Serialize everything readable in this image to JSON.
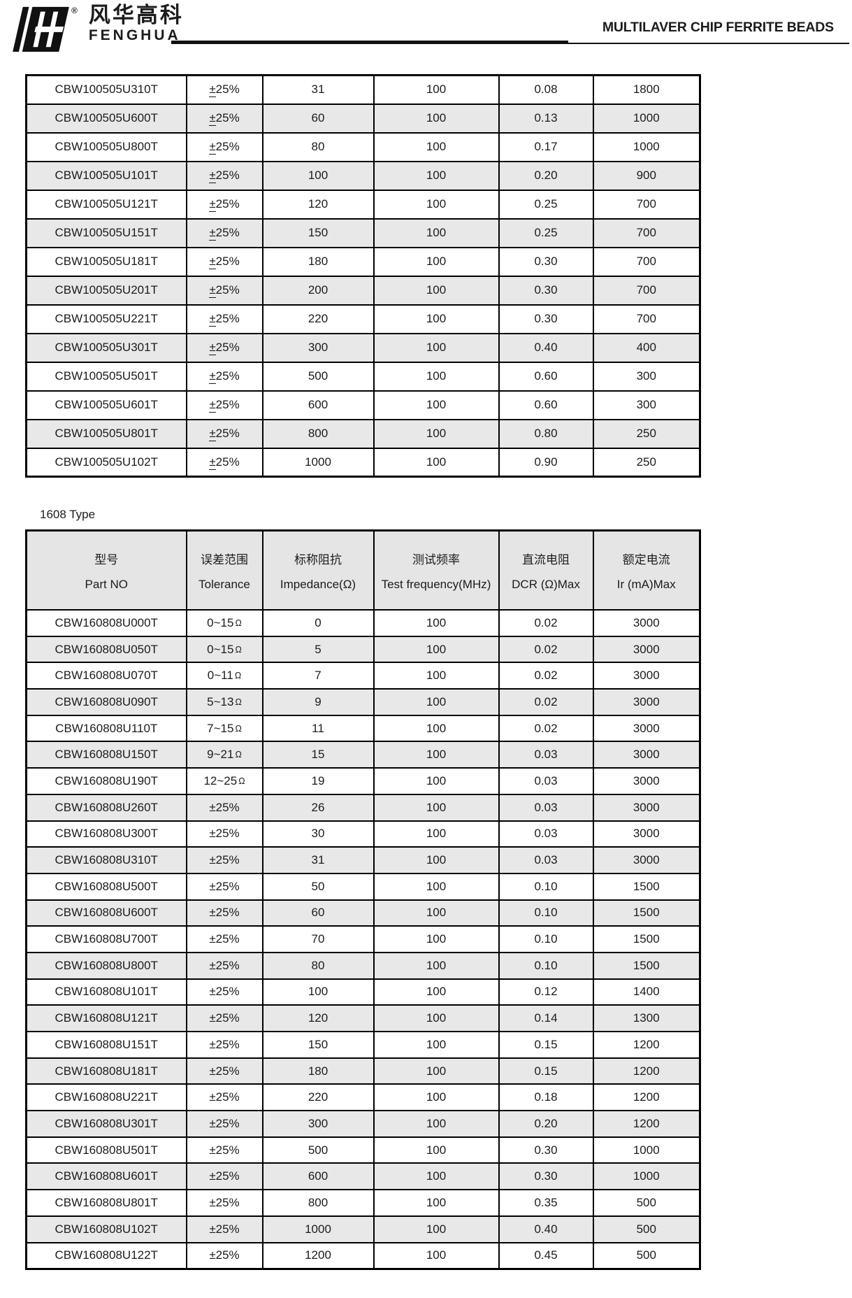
{
  "header": {
    "brand_cn": "风华高科",
    "brand_en": "FENGHUA",
    "registered_mark": "®",
    "doc_title": "MULTILAVER CHIP FERRITE BEADS"
  },
  "section_label": "1608 Type",
  "columns": [
    {
      "key": "part_no",
      "cn": "型号",
      "en": "Part NO"
    },
    {
      "key": "tolerance",
      "cn": "误差范围",
      "en": "Tolerance"
    },
    {
      "key": "impedance",
      "cn": "标称阻抗",
      "en": "Impedance(Ω)"
    },
    {
      "key": "test_frequency",
      "cn": "测试频率",
      "en": "Test frequency(MHz)"
    },
    {
      "key": "dcr",
      "cn": "直流电阻",
      "en": "DCR (Ω)Max"
    },
    {
      "key": "ir",
      "cn": "额定电流",
      "en": "Ir (mA)Max"
    }
  ],
  "table_100505": {
    "rows": [
      {
        "part_no": "CBW100505U310T",
        "tolerance": "±25%",
        "impedance": "31",
        "test_frequency": "100",
        "dcr": "0.08",
        "ir": "1800",
        "shaded": false
      },
      {
        "part_no": "CBW100505U600T",
        "tolerance": "±25%",
        "impedance": "60",
        "test_frequency": "100",
        "dcr": "0.13",
        "ir": "1000",
        "shaded": true
      },
      {
        "part_no": "CBW100505U800T",
        "tolerance": "±25%",
        "impedance": "80",
        "test_frequency": "100",
        "dcr": "0.17",
        "ir": "1000",
        "shaded": false
      },
      {
        "part_no": "CBW100505U101T",
        "tolerance": "±25%",
        "impedance": "100",
        "test_frequency": "100",
        "dcr": "0.20",
        "ir": "900",
        "shaded": true
      },
      {
        "part_no": "CBW100505U121T",
        "tolerance": "±25%",
        "impedance": "120",
        "test_frequency": "100",
        "dcr": "0.25",
        "ir": "700",
        "shaded": false
      },
      {
        "part_no": "CBW100505U151T",
        "tolerance": "±25%",
        "impedance": "150",
        "test_frequency": "100",
        "dcr": "0.25",
        "ir": "700",
        "shaded": true
      },
      {
        "part_no": "CBW100505U181T",
        "tolerance": "±25%",
        "impedance": "180",
        "test_frequency": "100",
        "dcr": "0.30",
        "ir": "700",
        "shaded": false
      },
      {
        "part_no": "CBW100505U201T",
        "tolerance": "±25%",
        "impedance": "200",
        "test_frequency": "100",
        "dcr": "0.30",
        "ir": "700",
        "shaded": true
      },
      {
        "part_no": "CBW100505U221T",
        "tolerance": "±25%",
        "impedance": "220",
        "test_frequency": "100",
        "dcr": "0.30",
        "ir": "700",
        "shaded": false
      },
      {
        "part_no": "CBW100505U301T",
        "tolerance": "±25%",
        "impedance": "300",
        "test_frequency": "100",
        "dcr": "0.40",
        "ir": "400",
        "shaded": true
      },
      {
        "part_no": "CBW100505U501T",
        "tolerance": "±25%",
        "impedance": "500",
        "test_frequency": "100",
        "dcr": "0.60",
        "ir": "300",
        "shaded": false
      },
      {
        "part_no": "CBW100505U601T",
        "tolerance": "±25%",
        "impedance": "600",
        "test_frequency": "100",
        "dcr": "0.60",
        "ir": "300",
        "shaded": false
      },
      {
        "part_no": "CBW100505U801T",
        "tolerance": "±25%",
        "impedance": "800",
        "test_frequency": "100",
        "dcr": "0.80",
        "ir": "250",
        "shaded": true
      },
      {
        "part_no": "CBW100505U102T",
        "tolerance": "±25%",
        "impedance": "1000",
        "test_frequency": "100",
        "dcr": "0.90",
        "ir": "250",
        "shaded": false
      }
    ]
  },
  "table_1608": {
    "rows": [
      {
        "part_no": "CBW160808U000T",
        "tolerance": "0~15Ω",
        "impedance": "0",
        "test_frequency": "100",
        "dcr": "0.02",
        "ir": "3000",
        "shaded": false
      },
      {
        "part_no": "CBW160808U050T",
        "tolerance": "0~15Ω",
        "impedance": "5",
        "test_frequency": "100",
        "dcr": "0.02",
        "ir": "3000",
        "shaded": true
      },
      {
        "part_no": "CBW160808U070T",
        "tolerance": "0~11Ω",
        "impedance": "7",
        "test_frequency": "100",
        "dcr": "0.02",
        "ir": "3000",
        "shaded": false
      },
      {
        "part_no": "CBW160808U090T",
        "tolerance": "5~13Ω",
        "impedance": "9",
        "test_frequency": "100",
        "dcr": "0.02",
        "ir": "3000",
        "shaded": true
      },
      {
        "part_no": "CBW160808U110T",
        "tolerance": "7~15Ω",
        "impedance": "11",
        "test_frequency": "100",
        "dcr": "0.02",
        "ir": "3000",
        "shaded": false
      },
      {
        "part_no": "CBW160808U150T",
        "tolerance": "9~21Ω",
        "impedance": "15",
        "test_frequency": "100",
        "dcr": "0.03",
        "ir": "3000",
        "shaded": true
      },
      {
        "part_no": "CBW160808U190T",
        "tolerance": "12~25Ω",
        "impedance": "19",
        "test_frequency": "100",
        "dcr": "0.03",
        "ir": "3000",
        "shaded": false
      },
      {
        "part_no": "CBW160808U260T",
        "tolerance": "±25%",
        "impedance": "26",
        "test_frequency": "100",
        "dcr": "0.03",
        "ir": "3000",
        "shaded": true
      },
      {
        "part_no": "CBW160808U300T",
        "tolerance": "±25%",
        "impedance": "30",
        "test_frequency": "100",
        "dcr": "0.03",
        "ir": "3000",
        "shaded": false
      },
      {
        "part_no": "CBW160808U310T",
        "tolerance": "±25%",
        "impedance": "31",
        "test_frequency": "100",
        "dcr": "0.03",
        "ir": "3000",
        "shaded": true
      },
      {
        "part_no": "CBW160808U500T",
        "tolerance": "±25%",
        "impedance": "50",
        "test_frequency": "100",
        "dcr": "0.10",
        "ir": "1500",
        "shaded": false
      },
      {
        "part_no": "CBW160808U600T",
        "tolerance": "±25%",
        "impedance": "60",
        "test_frequency": "100",
        "dcr": "0.10",
        "ir": "1500",
        "shaded": true
      },
      {
        "part_no": "CBW160808U700T",
        "tolerance": "±25%",
        "impedance": "70",
        "test_frequency": "100",
        "dcr": "0.10",
        "ir": "1500",
        "shaded": false
      },
      {
        "part_no": "CBW160808U800T",
        "tolerance": "±25%",
        "impedance": "80",
        "test_frequency": "100",
        "dcr": "0.10",
        "ir": "1500",
        "shaded": true
      },
      {
        "part_no": "CBW160808U101T",
        "tolerance": "±25%",
        "impedance": "100",
        "test_frequency": "100",
        "dcr": "0.12",
        "ir": "1400",
        "shaded": false
      },
      {
        "part_no": "CBW160808U121T",
        "tolerance": "±25%",
        "impedance": "120",
        "test_frequency": "100",
        "dcr": "0.14",
        "ir": "1300",
        "shaded": true
      },
      {
        "part_no": "CBW160808U151T",
        "tolerance": "±25%",
        "impedance": "150",
        "test_frequency": "100",
        "dcr": "0.15",
        "ir": "1200",
        "shaded": false
      },
      {
        "part_no": "CBW160808U181T",
        "tolerance": "±25%",
        "impedance": "180",
        "test_frequency": "100",
        "dcr": "0.15",
        "ir": "1200",
        "shaded": true
      },
      {
        "part_no": "CBW160808U221T",
        "tolerance": "±25%",
        "impedance": "220",
        "test_frequency": "100",
        "dcr": "0.18",
        "ir": "1200",
        "shaded": false
      },
      {
        "part_no": "CBW160808U301T",
        "tolerance": "±25%",
        "impedance": "300",
        "test_frequency": "100",
        "dcr": "0.20",
        "ir": "1200",
        "shaded": true
      },
      {
        "part_no": "CBW160808U501T",
        "tolerance": "±25%",
        "impedance": "500",
        "test_frequency": "100",
        "dcr": "0.30",
        "ir": "1000",
        "shaded": false
      },
      {
        "part_no": "CBW160808U601T",
        "tolerance": "±25%",
        "impedance": "600",
        "test_frequency": "100",
        "dcr": "0.30",
        "ir": "1000",
        "shaded": true
      },
      {
        "part_no": "CBW160808U801T",
        "tolerance": "±25%",
        "impedance": "800",
        "test_frequency": "100",
        "dcr": "0.35",
        "ir": "500",
        "shaded": false
      },
      {
        "part_no": "CBW160808U102T",
        "tolerance": "±25%",
        "impedance": "1000",
        "test_frequency": "100",
        "dcr": "0.40",
        "ir": "500",
        "shaded": true
      },
      {
        "part_no": "CBW160808U122T",
        "tolerance": "±25%",
        "impedance": "1200",
        "test_frequency": "100",
        "dcr": "0.45",
        "ir": "500",
        "shaded": false
      }
    ]
  }
}
